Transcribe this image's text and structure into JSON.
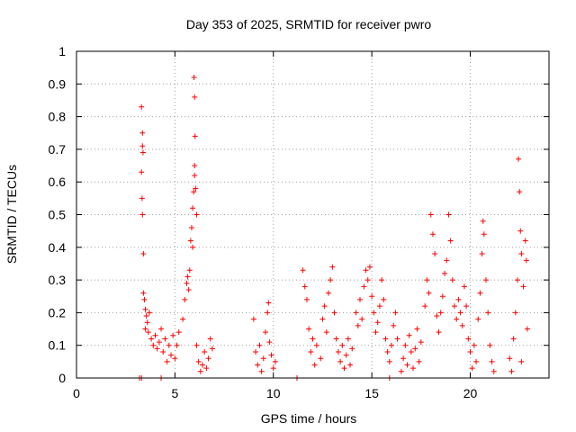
{
  "chart_data": {
    "type": "scatter",
    "title": "Day 353 of 2025, SRMTID for receiver pwro",
    "xlabel": "GPS time / hours",
    "ylabel": "SRMTID / TECUs",
    "xlim": [
      0,
      24
    ],
    "ylim": [
      0,
      1
    ],
    "x_ticks": [
      0,
      5,
      10,
      15,
      20
    ],
    "x_tick_labels": [
      "0",
      "5",
      "10",
      "15",
      "20"
    ],
    "y_ticks": [
      0,
      0.1,
      0.2,
      0.3,
      0.4,
      0.5,
      0.6,
      0.7,
      0.8,
      0.9,
      1
    ],
    "y_tick_labels": [
      "0",
      "0.1",
      "0.2",
      "0.3",
      "0.4",
      "0.5",
      "0.6",
      "0.7",
      "0.8",
      "0.9",
      "1"
    ],
    "grid": true,
    "marker": "+",
    "color": "#ff0000",
    "series": [
      {
        "name": "SRMTID",
        "points": [
          [
            3.2,
            0.0
          ],
          [
            3.3,
            0.0
          ],
          [
            4.3,
            0.0
          ],
          [
            11.2,
            0.0
          ],
          [
            15.9,
            0.0
          ],
          [
            3.3,
            0.83
          ],
          [
            3.35,
            0.75
          ],
          [
            3.35,
            0.71
          ],
          [
            3.38,
            0.69
          ],
          [
            3.3,
            0.63
          ],
          [
            3.33,
            0.55
          ],
          [
            3.35,
            0.5
          ],
          [
            3.4,
            0.38
          ],
          [
            3.4,
            0.26
          ],
          [
            3.45,
            0.24
          ],
          [
            3.5,
            0.21
          ],
          [
            3.55,
            0.19
          ],
          [
            3.6,
            0.17
          ],
          [
            3.5,
            0.15
          ],
          [
            3.65,
            0.14
          ],
          [
            3.7,
            0.2
          ],
          [
            3.8,
            0.12
          ],
          [
            3.9,
            0.1
          ],
          [
            4.0,
            0.13
          ],
          [
            4.1,
            0.09
          ],
          [
            4.2,
            0.11
          ],
          [
            4.3,
            0.15
          ],
          [
            4.4,
            0.08
          ],
          [
            4.5,
            0.12
          ],
          [
            4.6,
            0.05
          ],
          [
            4.7,
            0.1
          ],
          [
            4.8,
            0.07
          ],
          [
            4.9,
            0.13
          ],
          [
            5.0,
            0.06
          ],
          [
            5.1,
            0.1
          ],
          [
            5.2,
            0.14
          ],
          [
            5.4,
            0.18
          ],
          [
            5.5,
            0.24
          ],
          [
            5.6,
            0.29
          ],
          [
            5.65,
            0.31
          ],
          [
            5.7,
            0.27
          ],
          [
            5.75,
            0.33
          ],
          [
            5.8,
            0.42
          ],
          [
            5.85,
            0.46
          ],
          [
            5.9,
            0.52
          ],
          [
            5.95,
            0.57
          ],
          [
            6.0,
            0.62
          ],
          [
            6.0,
            0.65
          ],
          [
            6.02,
            0.74
          ],
          [
            6.0,
            0.86
          ],
          [
            5.97,
            0.92
          ],
          [
            6.05,
            0.58
          ],
          [
            6.1,
            0.5
          ],
          [
            5.9,
            0.4
          ],
          [
            6.1,
            0.1
          ],
          [
            6.2,
            0.05
          ],
          [
            6.3,
            0.02
          ],
          [
            6.4,
            0.04
          ],
          [
            6.5,
            0.08
          ],
          [
            6.6,
            0.03
          ],
          [
            6.7,
            0.06
          ],
          [
            6.8,
            0.12
          ],
          [
            6.9,
            0.09
          ],
          [
            9.0,
            0.18
          ],
          [
            9.1,
            0.08
          ],
          [
            9.2,
            0.04
          ],
          [
            9.3,
            0.1
          ],
          [
            9.4,
            0.02
          ],
          [
            9.5,
            0.06
          ],
          [
            9.6,
            0.14
          ],
          [
            9.7,
            0.2
          ],
          [
            9.75,
            0.23
          ],
          [
            9.8,
            0.11
          ],
          [
            9.9,
            0.07
          ],
          [
            10.0,
            0.03
          ],
          [
            10.1,
            0.05
          ],
          [
            11.5,
            0.33
          ],
          [
            11.6,
            0.28
          ],
          [
            11.7,
            0.24
          ],
          [
            11.8,
            0.15
          ],
          [
            11.9,
            0.08
          ],
          [
            12.0,
            0.12
          ],
          [
            12.1,
            0.04
          ],
          [
            12.2,
            0.1
          ],
          [
            12.4,
            0.06
          ],
          [
            12.5,
            0.18
          ],
          [
            12.6,
            0.22
          ],
          [
            12.7,
            0.14
          ],
          [
            12.8,
            0.26
          ],
          [
            12.9,
            0.3
          ],
          [
            13.0,
            0.34
          ],
          [
            13.1,
            0.2
          ],
          [
            13.2,
            0.12
          ],
          [
            13.3,
            0.08
          ],
          [
            13.4,
            0.05
          ],
          [
            13.5,
            0.1
          ],
          [
            13.6,
            0.03
          ],
          [
            13.7,
            0.07
          ],
          [
            13.8,
            0.12
          ],
          [
            13.9,
            0.04
          ],
          [
            14.0,
            0.09
          ],
          [
            14.2,
            0.2
          ],
          [
            14.3,
            0.16
          ],
          [
            14.4,
            0.24
          ],
          [
            14.5,
            0.18
          ],
          [
            14.6,
            0.28
          ],
          [
            14.7,
            0.33
          ],
          [
            14.8,
            0.3
          ],
          [
            14.9,
            0.34
          ],
          [
            15.0,
            0.25
          ],
          [
            15.1,
            0.2
          ],
          [
            15.2,
            0.14
          ],
          [
            15.3,
            0.17
          ],
          [
            15.4,
            0.22
          ],
          [
            15.5,
            0.3
          ],
          [
            15.6,
            0.24
          ],
          [
            15.7,
            0.12
          ],
          [
            15.8,
            0.08
          ],
          [
            15.9,
            0.05
          ],
          [
            16.0,
            0.1
          ],
          [
            16.1,
            0.16
          ],
          [
            16.2,
            0.2
          ],
          [
            16.3,
            0.12
          ],
          [
            16.5,
            0.02
          ],
          [
            16.6,
            0.06
          ],
          [
            16.7,
            0.1
          ],
          [
            16.8,
            0.04
          ],
          [
            16.9,
            0.13
          ],
          [
            17.0,
            0.08
          ],
          [
            17.1,
            0.03
          ],
          [
            17.2,
            0.09
          ],
          [
            17.3,
            0.15
          ],
          [
            17.4,
            0.05
          ],
          [
            17.5,
            0.11
          ],
          [
            17.7,
            0.22
          ],
          [
            17.8,
            0.3
          ],
          [
            17.9,
            0.26
          ],
          [
            18.0,
            0.5
          ],
          [
            18.1,
            0.44
          ],
          [
            18.2,
            0.38
          ],
          [
            18.3,
            0.19
          ],
          [
            18.4,
            0.14
          ],
          [
            18.5,
            0.2
          ],
          [
            18.6,
            0.25
          ],
          [
            18.7,
            0.32
          ],
          [
            18.8,
            0.36
          ],
          [
            18.9,
            0.5
          ],
          [
            19.0,
            0.42
          ],
          [
            19.1,
            0.3
          ],
          [
            19.2,
            0.22
          ],
          [
            19.3,
            0.18
          ],
          [
            19.4,
            0.24
          ],
          [
            19.5,
            0.2
          ],
          [
            19.6,
            0.16
          ],
          [
            19.7,
            0.28
          ],
          [
            19.8,
            0.22
          ],
          [
            19.9,
            0.12
          ],
          [
            20.0,
            0.08
          ],
          [
            20.1,
            0.03
          ],
          [
            20.2,
            0.1
          ],
          [
            20.3,
            0.05
          ],
          [
            20.4,
            0.18
          ],
          [
            20.5,
            0.26
          ],
          [
            20.6,
            0.38
          ],
          [
            20.65,
            0.48
          ],
          [
            20.7,
            0.44
          ],
          [
            20.8,
            0.3
          ],
          [
            20.9,
            0.2
          ],
          [
            21.0,
            0.1
          ],
          [
            21.1,
            0.05
          ],
          [
            21.2,
            0.02
          ],
          [
            22.0,
            0.06
          ],
          [
            22.1,
            0.02
          ],
          [
            22.2,
            0.12
          ],
          [
            22.3,
            0.2
          ],
          [
            22.4,
            0.3
          ],
          [
            22.45,
            0.67
          ],
          [
            22.5,
            0.57
          ],
          [
            22.55,
            0.45
          ],
          [
            22.6,
            0.38
          ],
          [
            22.7,
            0.28
          ],
          [
            22.8,
            0.42
          ],
          [
            22.85,
            0.36
          ],
          [
            22.9,
            0.15
          ],
          [
            22.6,
            0.05
          ]
        ]
      }
    ]
  }
}
